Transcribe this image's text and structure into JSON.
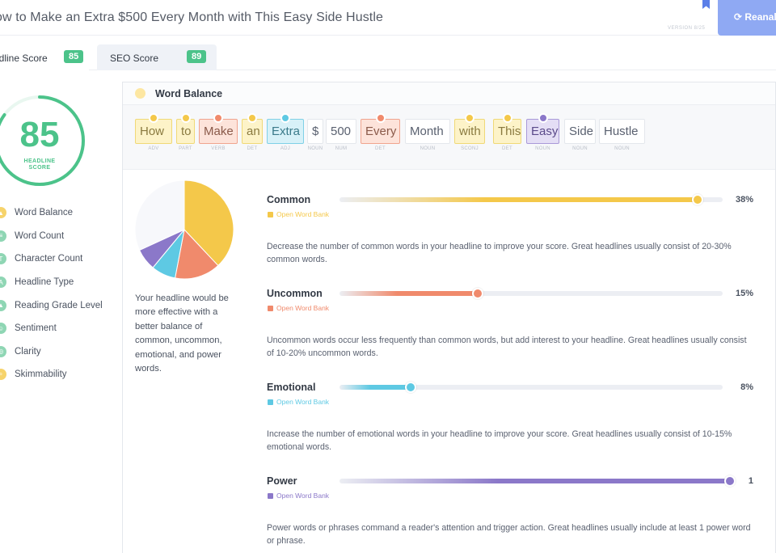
{
  "header": {
    "headline": "ow to Make an Extra $500 Every Month with This Easy Side Hustle",
    "version": "VERSION 8/25",
    "reanalyze_label": "⟳ Reanaly"
  },
  "tabs": [
    {
      "label": "adline Score",
      "badge": "85"
    },
    {
      "label": "SEO Score",
      "badge": "89"
    }
  ],
  "score": {
    "value": "85",
    "caption": "HEADLINE SCORE",
    "ring_fraction": 0.85,
    "color": "#4cc38a"
  },
  "sidebar": {
    "items": [
      {
        "label": "Word Balance",
        "icon": "balance-icon",
        "color": "#f6d36b"
      },
      {
        "label": "Word Count",
        "icon": "list-icon",
        "color": "#8fd6b4"
      },
      {
        "label": "Character Count",
        "icon": "text-icon",
        "color": "#8fd6b4"
      },
      {
        "label": "Headline Type",
        "icon": "type-icon",
        "color": "#8fd6b4"
      },
      {
        "label": "Reading Grade Level",
        "icon": "graduation-icon",
        "color": "#8fd6b4"
      },
      {
        "label": "Sentiment",
        "icon": "smile-icon",
        "color": "#8fd6b4"
      },
      {
        "label": "Clarity",
        "icon": "target-icon",
        "color": "#8fd6b4"
      },
      {
        "label": "Skimmability",
        "icon": "magnifier-icon",
        "color": "#f6d36b"
      }
    ]
  },
  "card": {
    "title": "Word Balance",
    "words": [
      {
        "text": "How",
        "pos": "ADV",
        "type": "common"
      },
      {
        "text": "to",
        "pos": "PART",
        "type": "common"
      },
      {
        "text": "Make",
        "pos": "VERB",
        "type": "uncommon"
      },
      {
        "text": "an",
        "pos": "DET",
        "type": "common"
      },
      {
        "text": "Extra",
        "pos": "ADJ",
        "type": "emotional"
      },
      {
        "text": "$",
        "pos": "NOUN",
        "type": "plain"
      },
      {
        "text": "500",
        "pos": "NUM",
        "type": "plain"
      },
      {
        "text": "Every",
        "pos": "DET",
        "type": "uncommon"
      },
      {
        "text": "Month",
        "pos": "NOUN",
        "type": "plain"
      },
      {
        "text": "with",
        "pos": "SCONJ",
        "type": "common"
      },
      {
        "text": "This",
        "pos": "DET",
        "type": "common"
      },
      {
        "text": "Easy",
        "pos": "NOUN",
        "type": "power"
      },
      {
        "text": "Side",
        "pos": "NOUN",
        "type": "plain"
      },
      {
        "text": "Hustle",
        "pos": "NOUN",
        "type": "plain"
      }
    ],
    "pie_note": "Your headline would be more effective with a better balance of common, uncommon, emotional, and power words.",
    "metrics": [
      {
        "name": "Common",
        "link": "Open Word Bank",
        "value": "38%",
        "level": 0.38,
        "color": "#f4c84a",
        "desc": "Decrease the number of common words in your headline to improve your score. Great headlines usually consist of 20-30% common words."
      },
      {
        "name": "Uncommon",
        "link": "Open Word Bank",
        "value": "15%",
        "level": 0.15,
        "color": "#f08a6c",
        "desc": "Uncommon words occur less frequently than common words, but add interest to your headline. Great headlines usually consist of 10-20% uncommon words."
      },
      {
        "name": "Emotional",
        "link": "Open Word Bank",
        "value": "8%",
        "level": 0.08,
        "color": "#5ec9e3",
        "desc": "Increase the number of emotional words in your headline to improve your score. Great headlines usually consist of 10-15% emotional words."
      },
      {
        "name": "Power",
        "link": "Open Word Bank",
        "value": "1",
        "level": 1,
        "color": "#8b78c9",
        "desc": "Power words or phrases command a reader's attention and trigger action. Great headlines usually include at least 1 power word or phrase."
      }
    ]
  },
  "colors": {
    "common": "#f4c84a",
    "uncommon": "#f08a6c",
    "emotional": "#5ec9e3",
    "power": "#8b78c9",
    "other": "#f7f8fb"
  }
}
